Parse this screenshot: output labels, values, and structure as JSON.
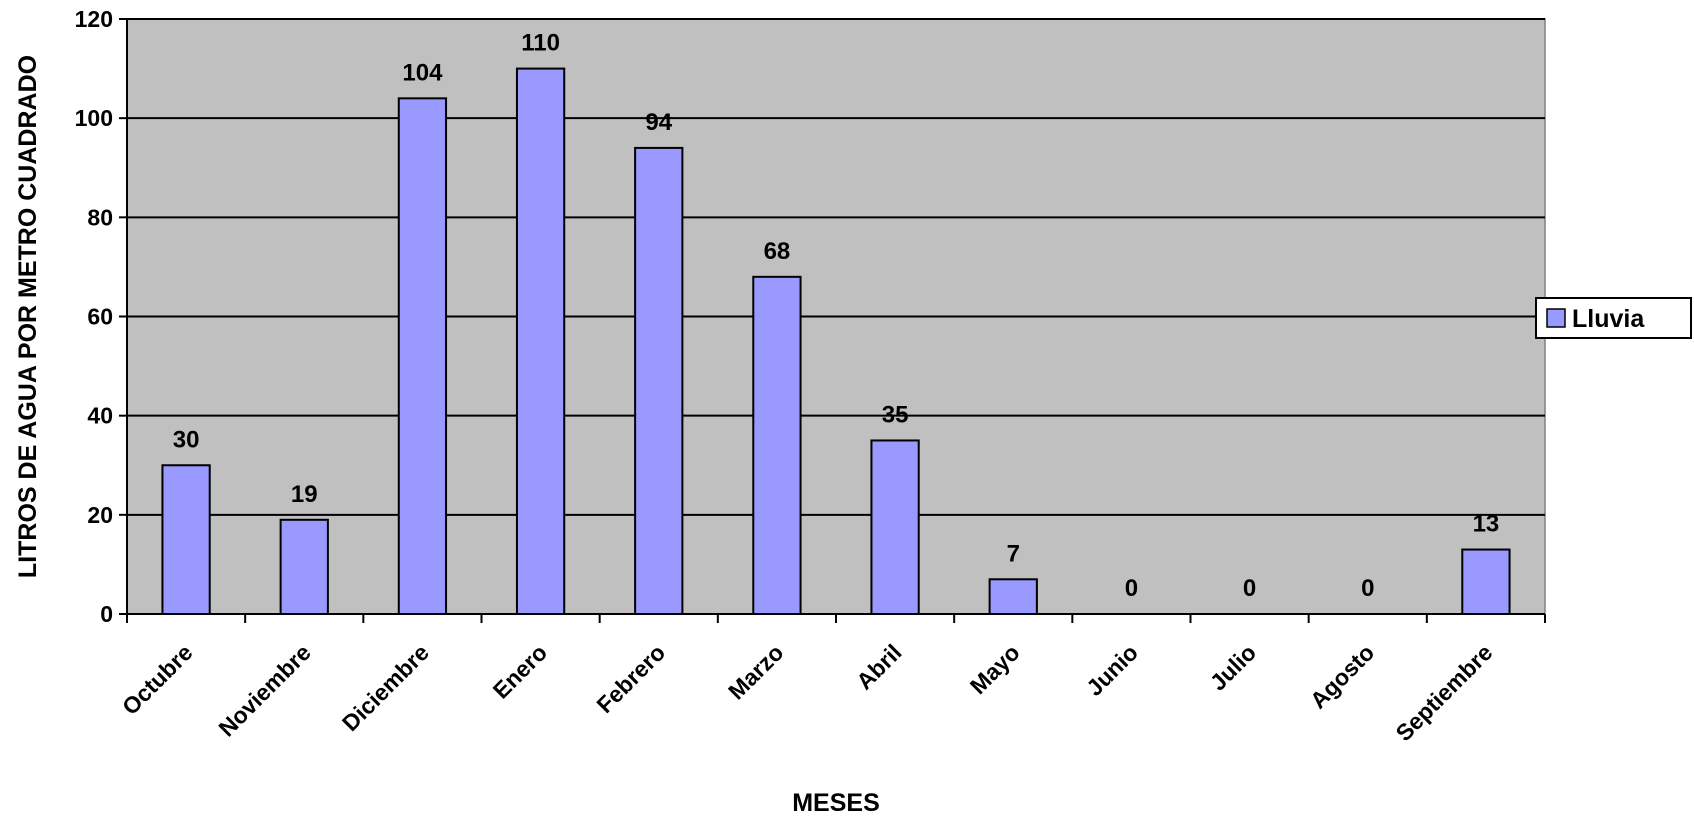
{
  "chart_data": {
    "type": "bar",
    "categories": [
      "Octubre",
      "Noviembre",
      "Diciembre",
      "Enero",
      "Febrero",
      "Marzo",
      "Abril",
      "Mayo",
      "Junio",
      "Julio",
      "Agosto",
      "Septiembre"
    ],
    "series": [
      {
        "name": "Lluvia",
        "values": [
          30,
          19,
          104,
          110,
          94,
          68,
          35,
          7,
          0,
          0,
          0,
          13
        ]
      }
    ],
    "title": "",
    "xlabel": "MESES",
    "ylabel": "LITROS DE AGUA POR METRO CUADRADO",
    "ylim": [
      0,
      120
    ],
    "yticks": [
      0,
      20,
      40,
      60,
      80,
      100,
      120
    ],
    "grid": true,
    "legend_position": "right",
    "data_labels": true,
    "colors": {
      "bar_fill": "#9999ff",
      "bar_stroke": "#000000",
      "plot_background": "#c0c0c0",
      "gridline": "#000000",
      "page_background": "#ffffff"
    }
  }
}
